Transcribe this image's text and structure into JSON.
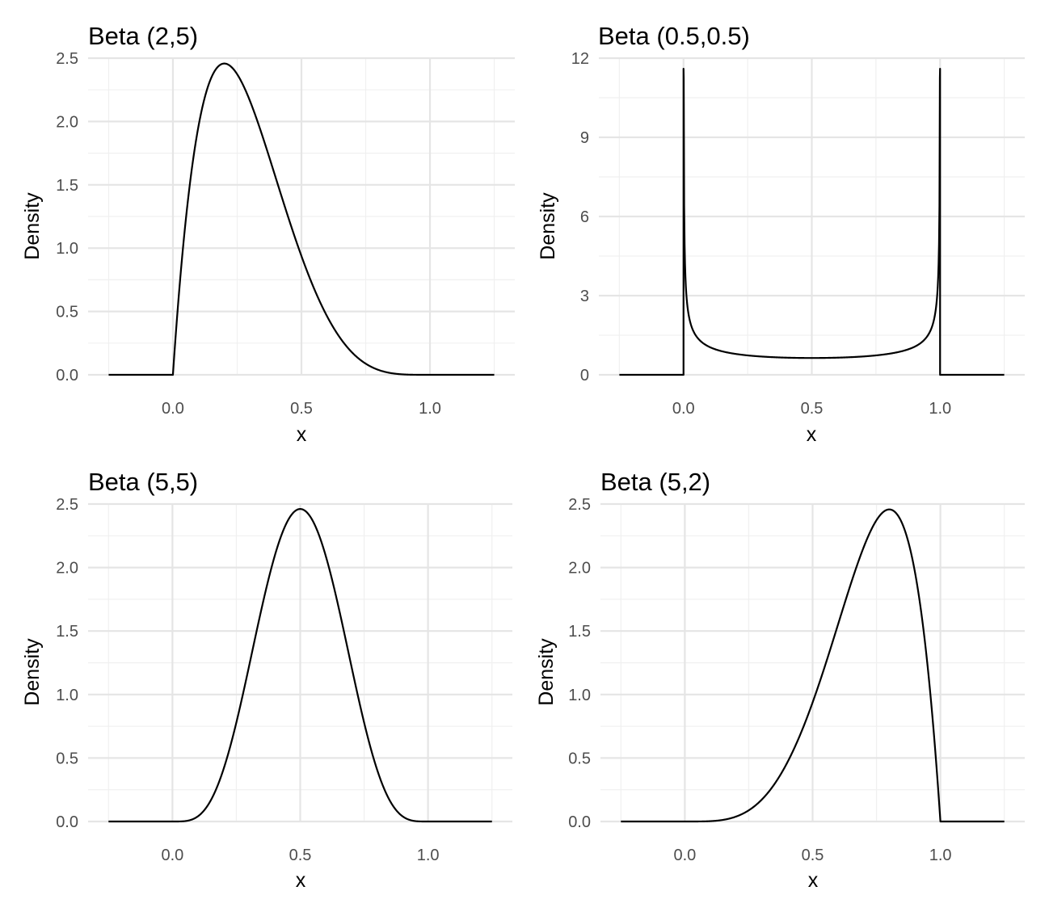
{
  "chart_data": [
    {
      "type": "line",
      "title": "Beta (2,5)",
      "xlabel": "x",
      "ylabel": "Density",
      "distribution": {
        "alpha": 2,
        "beta": 5
      },
      "x_range": [
        -0.25,
        1.25
      ],
      "xlim": [
        -0.33,
        1.33
      ],
      "ylim": [
        0,
        2.5
      ],
      "x_ticks": [
        "0.0",
        "0.5",
        "1.0"
      ],
      "y_ticks": [
        "0.0",
        "0.5",
        "1.0",
        "1.5",
        "2.0",
        "2.5"
      ],
      "grid": true,
      "series": [
        {
          "x": [
            0,
            0.1,
            0.2,
            0.3,
            0.4,
            0.5,
            0.6,
            0.7,
            0.8,
            0.9,
            1.0
          ],
          "y": [
            0,
            1.97,
            2.46,
            2.16,
            1.56,
            0.94,
            0.46,
            0.16,
            0.03,
            0.003,
            0
          ]
        }
      ]
    },
    {
      "type": "line",
      "title": "Beta (0.5,0.5)",
      "xlabel": "x",
      "ylabel": "Density",
      "distribution": {
        "alpha": 0.5,
        "beta": 0.5
      },
      "x_range": [
        -0.25,
        1.25
      ],
      "xlim": [
        -0.33,
        1.33
      ],
      "ylim": [
        0,
        12
      ],
      "y_cap": 11.6,
      "x_ticks": [
        "0.0",
        "0.5",
        "1.0"
      ],
      "y_ticks": [
        "0",
        "3",
        "6",
        "9",
        "12"
      ],
      "grid": true,
      "series": [
        {
          "x": [
            0.001,
            0.05,
            0.1,
            0.3,
            0.5,
            0.7,
            0.9,
            0.95,
            0.999
          ],
          "y": [
            10.07,
            1.46,
            1.06,
            0.69,
            0.64,
            0.69,
            1.06,
            1.46,
            10.07
          ]
        }
      ]
    },
    {
      "type": "line",
      "title": "Beta (5,5)",
      "xlabel": "x",
      "ylabel": "Density",
      "distribution": {
        "alpha": 5,
        "beta": 5
      },
      "x_range": [
        -0.25,
        1.25
      ],
      "xlim": [
        -0.33,
        1.33
      ],
      "ylim": [
        0,
        2.5
      ],
      "x_ticks": [
        "0.0",
        "0.5",
        "1.0"
      ],
      "y_ticks": [
        "0.0",
        "0.5",
        "1.0",
        "1.5",
        "2.0",
        "2.5"
      ],
      "grid": true,
      "series": [
        {
          "x": [
            0,
            0.1,
            0.2,
            0.3,
            0.4,
            0.5,
            0.6,
            0.7,
            0.8,
            0.9,
            1.0
          ],
          "y": [
            0,
            0.03,
            0.52,
            1.5,
            2.26,
            2.46,
            2.26,
            1.5,
            0.52,
            0.03,
            0
          ]
        }
      ]
    },
    {
      "type": "line",
      "title": "Beta (5,2)",
      "xlabel": "x",
      "ylabel": "Density",
      "distribution": {
        "alpha": 5,
        "beta": 2
      },
      "x_range": [
        -0.25,
        1.25
      ],
      "xlim": [
        -0.33,
        1.33
      ],
      "ylim": [
        0,
        2.5
      ],
      "x_ticks": [
        "0.0",
        "0.5",
        "1.0"
      ],
      "y_ticks": [
        "0.0",
        "0.5",
        "1.0",
        "1.5",
        "2.0",
        "2.5"
      ],
      "grid": true,
      "series": [
        {
          "x": [
            0,
            0.1,
            0.2,
            0.3,
            0.4,
            0.5,
            0.6,
            0.7,
            0.8,
            0.9,
            1.0
          ],
          "y": [
            0,
            0.003,
            0.03,
            0.16,
            0.46,
            0.94,
            1.56,
            2.16,
            2.46,
            1.97,
            0
          ]
        }
      ]
    }
  ]
}
